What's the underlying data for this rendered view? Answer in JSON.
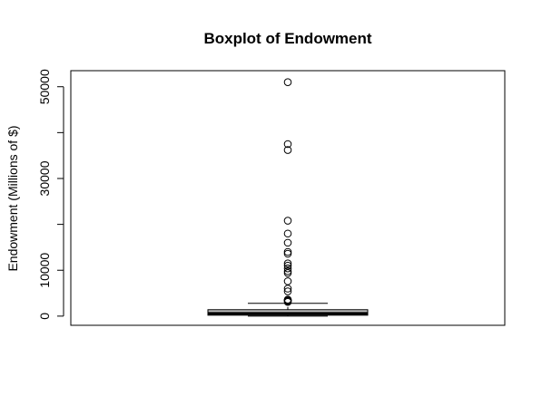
{
  "chart_data": {
    "type": "boxplot",
    "title": "Boxplot of Endowment",
    "xlabel": "",
    "ylabel": "Endowment (Millions of $)",
    "ylim": [
      -2000,
      53500
    ],
    "yticks": [
      0,
      10000,
      30000,
      50000
    ],
    "grid": false,
    "legend": "none",
    "colors": {
      "box_fill": "#bebebe",
      "stroke": "#000000"
    },
    "box": {
      "min": 0,
      "q1": 200,
      "median": 600,
      "q3": 1400,
      "whisker_low": 0,
      "whisker_high": 2800
    },
    "outliers": [
      51000,
      37500,
      36200,
      20800,
      18000,
      16000,
      14000,
      13600,
      11500,
      11000,
      10400,
      9800,
      9400,
      7600,
      6000,
      5400,
      3600,
      3500,
      3400,
      3300,
      3100
    ]
  }
}
